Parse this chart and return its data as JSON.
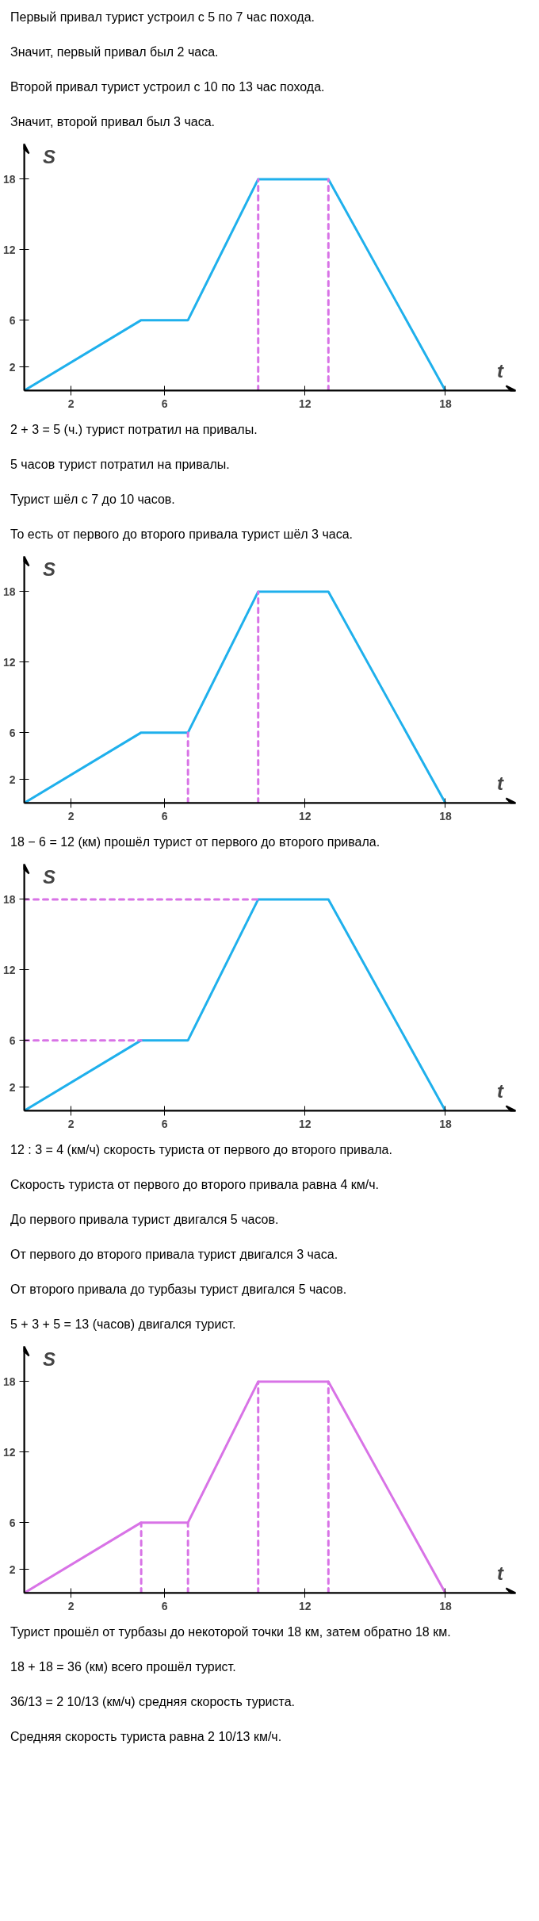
{
  "chart_data": [
    {
      "type": "line",
      "xlabel": "t",
      "ylabel": "S",
      "xlim": [
        0,
        21
      ],
      "ylim": [
        0,
        21
      ],
      "xticks": [
        2,
        6,
        12,
        18
      ],
      "yticks": [
        2,
        6,
        12,
        18
      ],
      "annotations": [
        "Первый привал турист устроил с 5 по 7 час похода.",
        "Значит, первый привал был 2 часа.",
        "Второй привал турист устроил с 10 по 13 час похода.",
        "Значит, второй привал был 3 часа."
      ],
      "series": [
        {
          "color": "#1fb0ec",
          "x": [
            0,
            5,
            7,
            10,
            13,
            18
          ],
          "values": [
            0,
            6,
            6,
            18,
            18,
            0
          ]
        },
        {
          "color": "#d873e6",
          "line_style": "dashed",
          "x": [
            10,
            10
          ],
          "values": [
            0,
            18
          ]
        },
        {
          "color": "#d873e6",
          "line_style": "dashed",
          "x": [
            13,
            13
          ],
          "values": [
            0,
            18
          ]
        }
      ]
    },
    {
      "type": "line",
      "xlabel": "t",
      "ylabel": "S",
      "xlim": [
        0,
        21
      ],
      "ylim": [
        0,
        21
      ],
      "xticks": [
        2,
        6,
        12,
        18
      ],
      "yticks": [
        2,
        6,
        12,
        18
      ],
      "annotations": [
        "2 + 3 = 5 (ч.) турист потратил на привалы.",
        "5 часов турист потратил на привалы.",
        "Турист шёл с 7 до 10 часов.",
        "То есть от первого до второго привала турист шёл 3 часа."
      ],
      "series": [
        {
          "color": "#1fb0ec",
          "x": [
            0,
            5,
            7,
            10,
            13,
            18
          ],
          "values": [
            0,
            6,
            6,
            18,
            18,
            0
          ]
        },
        {
          "color": "#d873e6",
          "line_style": "dashed",
          "x": [
            7,
            7
          ],
          "values": [
            0,
            6
          ]
        },
        {
          "color": "#d873e6",
          "line_style": "dashed",
          "x": [
            10,
            10
          ],
          "values": [
            0,
            18
          ]
        }
      ]
    },
    {
      "type": "line",
      "xlabel": "t",
      "ylabel": "S",
      "xlim": [
        0,
        21
      ],
      "ylim": [
        0,
        21
      ],
      "xticks": [
        2,
        6,
        12,
        18
      ],
      "yticks": [
        2,
        6,
        12,
        18
      ],
      "annotations": [
        "18 − 6 = 12 (км) прошёл турист от первого до второго привала."
      ],
      "series": [
        {
          "color": "#1fb0ec",
          "x": [
            0,
            5,
            7,
            10,
            13,
            18
          ],
          "values": [
            0,
            6,
            6,
            18,
            18,
            0
          ]
        },
        {
          "color": "#d873e6",
          "line_style": "dashed",
          "x": [
            0,
            10
          ],
          "values": [
            18,
            18
          ]
        },
        {
          "color": "#d873e6",
          "line_style": "dashed",
          "x": [
            0,
            5
          ],
          "values": [
            6,
            6
          ]
        }
      ]
    },
    {
      "type": "line",
      "xlabel": "t",
      "ylabel": "S",
      "xlim": [
        0,
        21
      ],
      "ylim": [
        0,
        21
      ],
      "xticks": [
        2,
        6,
        12,
        18
      ],
      "yticks": [
        2,
        6,
        12,
        18
      ],
      "annotations": [
        "12 : 3 = 4 (км/ч) скорость туриста от первого до второго привала.",
        "Скорость туриста от первого до второго привала равна 4 км/ч.",
        "До первого привала турист двигался 5 часов.",
        "От первого до второго привала турист двигался 3 часа.",
        "От второго привала до турбазы турист двигался 5 часов.",
        "5 + 3 + 5 = 13 (часов) двигался турист."
      ],
      "series": [
        {
          "color": "#d873e6",
          "x": [
            0,
            5,
            7,
            10,
            13,
            18
          ],
          "values": [
            0,
            6,
            6,
            18,
            18,
            0
          ]
        },
        {
          "color": "#d873e6",
          "line_style": "dashed",
          "x": [
            5,
            5
          ],
          "values": [
            0,
            6
          ]
        },
        {
          "color": "#d873e6",
          "line_style": "dashed",
          "x": [
            7,
            7
          ],
          "values": [
            0,
            6
          ]
        },
        {
          "color": "#d873e6",
          "line_style": "dashed",
          "x": [
            10,
            10
          ],
          "values": [
            0,
            18
          ]
        },
        {
          "color": "#d873e6",
          "line_style": "dashed",
          "x": [
            13,
            13
          ],
          "values": [
            0,
            18
          ]
        }
      ]
    },
    {
      "type": "other",
      "annotations": [
        "Турист прошёл от турбазы до некоторой точки 18 км, затем обратно 18 км.",
        "18 + 18 = 36 (км) всего прошёл турист.",
        "36/13 = 2 10/13 (км/ч) средняя скорость туриста.",
        "Средняя скорость туриста равна 2 10/13 км/ч."
      ]
    }
  ]
}
